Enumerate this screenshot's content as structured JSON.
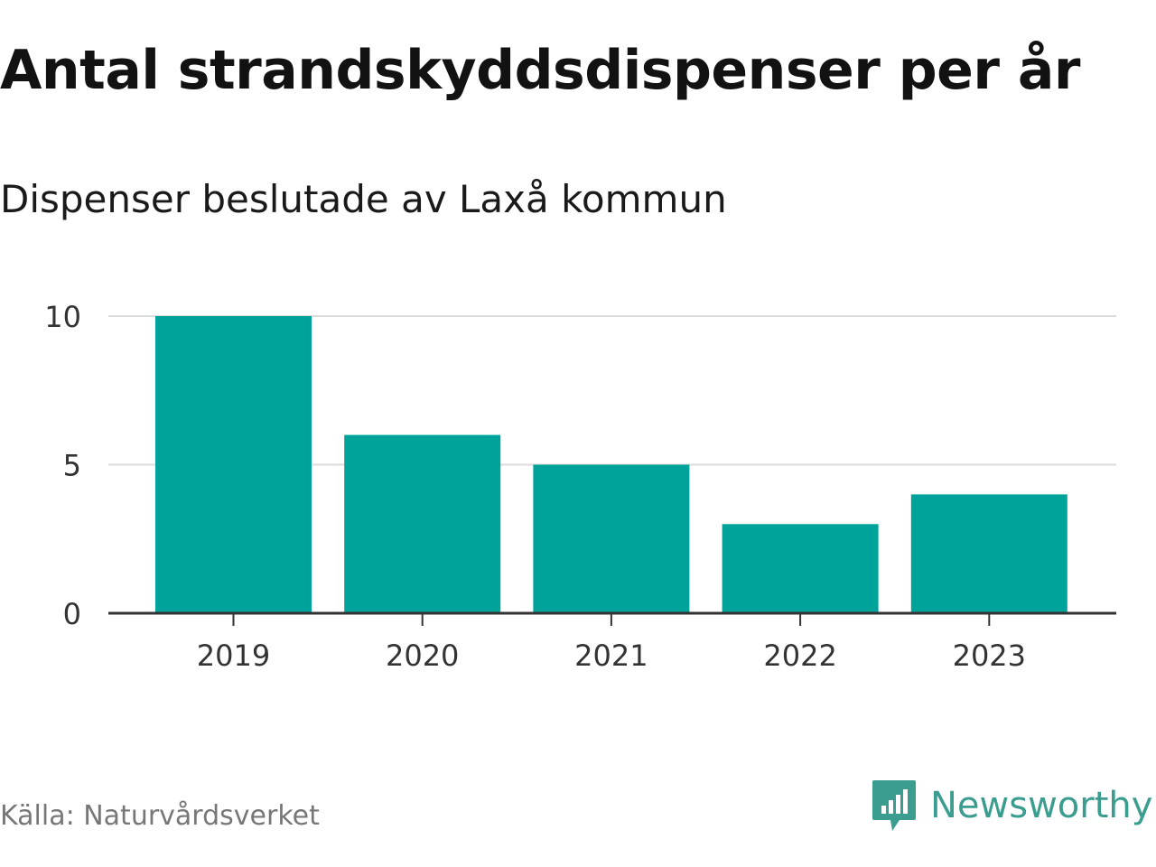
{
  "header": {
    "title": "Antal strandskyddsdispenser per år",
    "subtitle": "Dispenser beslutade av Laxå kommun"
  },
  "footer": {
    "source": "Källa: Naturvårdsverket",
    "brand": "Newsworthy",
    "brand_icon": "speech-bubble-bar-chart-icon"
  },
  "colors": {
    "bar": "#00A39A",
    "grid": "#dcdcdc",
    "axis": "#333333",
    "tick_label": "#333333",
    "brand": "#3a9d8f"
  },
  "chart_data": {
    "type": "bar",
    "title": "Antal strandskyddsdispenser per år",
    "subtitle": "Dispenser beslutade av Laxå kommun",
    "categories": [
      "2019",
      "2020",
      "2021",
      "2022",
      "2023"
    ],
    "values": [
      10,
      6,
      5,
      3,
      4
    ],
    "xlabel": "",
    "ylabel": "",
    "ylim": [
      0,
      10
    ],
    "yticks": [
      0,
      5,
      10
    ],
    "grid": true,
    "legend": "none"
  }
}
